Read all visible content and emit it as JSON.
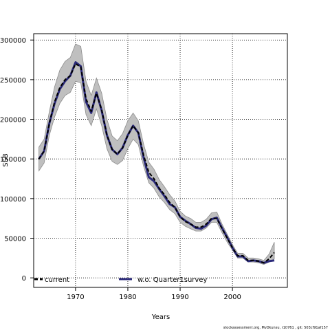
{
  "chart_data": {
    "type": "line",
    "xlabel": "Years",
    "ylabel": "SSB",
    "xlim": [
      1962,
      2010.5
    ],
    "ylim": [
      -12000,
      308000
    ],
    "x_ticks": [
      1970,
      1980,
      1990,
      2000
    ],
    "y_ticks": [
      0,
      50000,
      100000,
      150000,
      200000,
      250000,
      300000
    ],
    "x_tick_labels": [
      "1970",
      "1980",
      "1990",
      "2000"
    ],
    "y_tick_labels": [
      "0",
      "50000",
      "100000",
      "150000",
      "200000",
      "250000",
      "300000"
    ],
    "grid": true,
    "legend_position": "bottom",
    "colors": {
      "current": "#000000",
      "wo_quarter1survey": "#2b2a7a",
      "band": "#bfbfbf",
      "band_edge": "#8c8c8c"
    },
    "years": [
      1963,
      1964,
      1965,
      1966,
      1967,
      1968,
      1969,
      1970,
      1971,
      1972,
      1973,
      1974,
      1975,
      1976,
      1977,
      1978,
      1979,
      1980,
      1981,
      1982,
      1983,
      1984,
      1985,
      1986,
      1987,
      1988,
      1989,
      1990,
      1991,
      1992,
      1993,
      1994,
      1995,
      1996,
      1997,
      1998,
      1999,
      2000,
      2001,
      2002,
      2003,
      2004,
      2005,
      2006,
      2007,
      2008
    ],
    "series": [
      {
        "name": "current",
        "style": "dashed",
        "values": [
          150000,
          160000,
          195000,
          222000,
          240000,
          250000,
          255000,
          270000,
          266000,
          226000,
          210000,
          233000,
          212000,
          180000,
          162000,
          156000,
          164000,
          180000,
          192000,
          183000,
          155000,
          133000,
          125000,
          113000,
          105000,
          95000,
          89000,
          77000,
          71000,
          68000,
          64000,
          64000,
          68000,
          75000,
          75000,
          62000,
          50000,
          38000,
          28000,
          28000,
          22000,
          22000,
          21000,
          19000,
          24000,
          32000
        ],
        "lower": [
          135000,
          145000,
          180000,
          203000,
          220000,
          230000,
          234000,
          248000,
          246000,
          206000,
          192000,
          213000,
          192000,
          163000,
          147000,
          143000,
          148000,
          163000,
          175000,
          168000,
          141000,
          120000,
          113000,
          102000,
          95000,
          86000,
          81000,
          70000,
          65000,
          62000,
          59000,
          59000,
          63000,
          70000,
          70000,
          57000,
          45000,
          35000,
          25000,
          25000,
          20000,
          20000,
          19000,
          17000,
          20000,
          24000
        ],
        "upper": [
          165000,
          175000,
          210000,
          241000,
          262000,
          273000,
          278000,
          295000,
          292000,
          248000,
          230000,
          252000,
          233000,
          200000,
          179000,
          173000,
          182000,
          198000,
          208000,
          198000,
          169000,
          146000,
          137000,
          124000,
          115000,
          105000,
          97000,
          84000,
          78000,
          75000,
          70000,
          70000,
          74000,
          82000,
          83000,
          68000,
          55000,
          42000,
          31000,
          31000,
          25000,
          25000,
          24000,
          22000,
          30000,
          45000
        ]
      },
      {
        "name": "w.o. Quarter1survey",
        "style": "solid",
        "values": [
          150000,
          160000,
          195000,
          220000,
          238000,
          248000,
          255000,
          272000,
          267000,
          222000,
          208000,
          234000,
          211000,
          180000,
          162000,
          156000,
          164000,
          180000,
          192000,
          183000,
          152000,
          127000,
          122000,
          112000,
          103000,
          93000,
          89000,
          77000,
          72000,
          68000,
          63000,
          62000,
          66000,
          74000,
          76000,
          63000,
          51000,
          38000,
          27000,
          27000,
          21000,
          22000,
          21000,
          19000,
          21000,
          22000
        ]
      }
    ]
  },
  "legend": {
    "items": [
      {
        "label": "current"
      },
      {
        "label": "w.o. Quarter1survey"
      }
    ]
  },
  "footer": {
    "text": "stockassessment.org, MvDkunsu, r10761 , git: 503cf91af157"
  }
}
